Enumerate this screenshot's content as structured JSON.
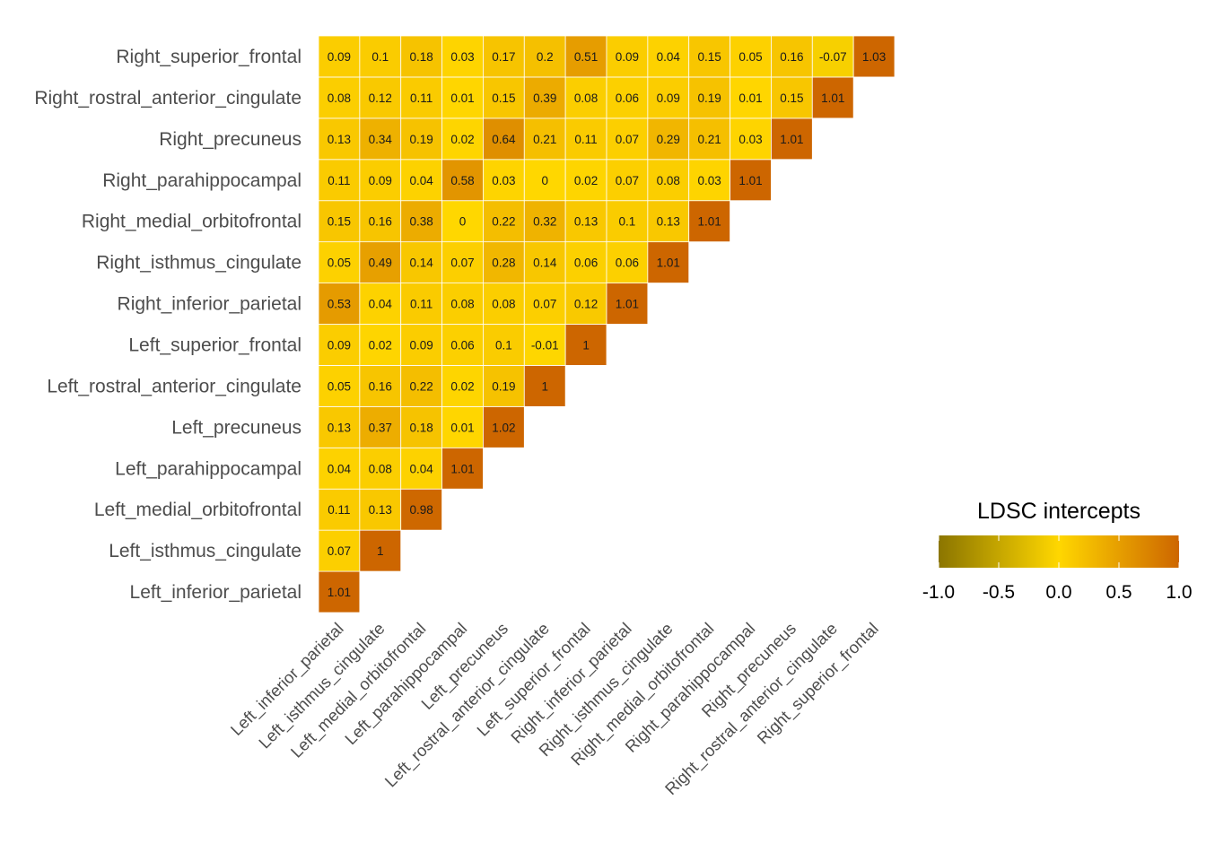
{
  "chart_data": {
    "type": "heatmap",
    "title": "",
    "xlabel": "",
    "ylabel": "",
    "variables": [
      "Left_inferior_parietal",
      "Left_isthmus_cingulate",
      "Left_medial_orbitofrontal",
      "Left_parahippocampal",
      "Left_precuneus",
      "Left_rostral_anterior_cingulate",
      "Left_superior_frontal",
      "Right_inferior_parietal",
      "Right_isthmus_cingulate",
      "Right_medial_orbitofrontal",
      "Right_parahippocampal",
      "Right_precuneus",
      "Right_rostral_anterior_cingulate",
      "Right_superior_frontal"
    ],
    "value_labels": [
      [
        "1.01"
      ],
      [
        "0.07",
        "1"
      ],
      [
        "0.11",
        "0.13",
        "0.98"
      ],
      [
        "0.04",
        "0.08",
        "0.04",
        "1.01"
      ],
      [
        "0.13",
        "0.37",
        "0.18",
        "0.01",
        "1.02"
      ],
      [
        "0.05",
        "0.16",
        "0.22",
        "0.02",
        "0.19",
        "1"
      ],
      [
        "0.09",
        "0.02",
        "0.09",
        "0.06",
        "0.1",
        "-0.01",
        "1"
      ],
      [
        "0.53",
        "0.04",
        "0.11",
        "0.08",
        "0.08",
        "0.07",
        "0.12",
        "1.01"
      ],
      [
        "0.05",
        "0.49",
        "0.14",
        "0.07",
        "0.28",
        "0.14",
        "0.06",
        "0.06",
        "1.01"
      ],
      [
        "0.15",
        "0.16",
        "0.38",
        "0",
        "0.22",
        "0.32",
        "0.13",
        "0.1",
        "0.13",
        "1.01"
      ],
      [
        "0.11",
        "0.09",
        "0.04",
        "0.58",
        "0.03",
        "0",
        "0.02",
        "0.07",
        "0.08",
        "0.03",
        "1.01"
      ],
      [
        "0.13",
        "0.34",
        "0.19",
        "0.02",
        "0.64",
        "0.21",
        "0.11",
        "0.07",
        "0.29",
        "0.21",
        "0.03",
        "1.01"
      ],
      [
        "0.08",
        "0.12",
        "0.11",
        "0.01",
        "0.15",
        "0.39",
        "0.08",
        "0.06",
        "0.09",
        "0.19",
        "0.01",
        "0.15",
        "1.01"
      ],
      [
        "0.09",
        "0.1",
        "0.18",
        "0.03",
        "0.17",
        "0.2",
        "0.51",
        "0.09",
        "0.04",
        "0.15",
        "0.05",
        "0.16",
        "-0.07",
        "1.03"
      ]
    ],
    "legend": {
      "title": "LDSC intercepts",
      "ticks": [
        "-1.0",
        "-0.5",
        "0.0",
        "0.5",
        "1.0"
      ],
      "range": [
        -1,
        1
      ],
      "colors": {
        "low": "#8B7500",
        "mid": "#FFD700",
        "high": "#CD6600"
      },
      "placement": "right"
    }
  }
}
